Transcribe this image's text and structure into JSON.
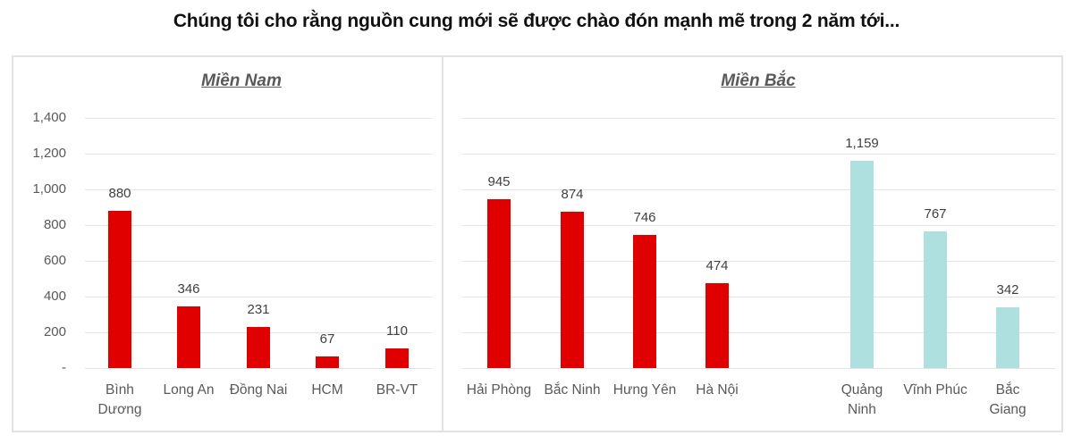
{
  "title": "Chúng tôi cho rằng nguồn cung mới sẽ được chào đón mạnh mẽ trong 2 năm tới...",
  "colors": {
    "red": "#e00000",
    "teal": "#aee0e0",
    "grid": "#e3e3e3",
    "axis_text": "#595959"
  },
  "y_ticks": [
    "1,400",
    "1,200",
    "1,000",
    "800",
    "600",
    "400",
    "200",
    "-"
  ],
  "chart_data": [
    {
      "type": "bar",
      "title": "Miền Nam",
      "categories": [
        "Bình Dương",
        "Long An",
        "Đồng Nai",
        "HCM",
        "BR-VT"
      ],
      "values": [
        880,
        346,
        231,
        67,
        110
      ],
      "value_labels": [
        "880",
        "346",
        "231",
        "67",
        "110"
      ],
      "xlabel": "",
      "ylabel": "",
      "ylim": [
        0,
        1400
      ],
      "yticks": [
        0,
        200,
        400,
        600,
        800,
        1000,
        1200,
        1400
      ],
      "grid": true,
      "bar_colors": [
        "#e00000",
        "#e00000",
        "#e00000",
        "#e00000",
        "#e00000"
      ]
    },
    {
      "type": "bar",
      "title": "Miền Bắc",
      "categories": [
        "Hải Phòng",
        "Bắc Ninh",
        "Hưng Yên",
        "Hà Nội",
        "Quảng Ninh",
        "Vĩnh Phúc",
        "Bắc Giang"
      ],
      "values": [
        945,
        874,
        746,
        474,
        1159,
        767,
        342
      ],
      "value_labels": [
        "945",
        "874",
        "746",
        "474",
        "1,159",
        "767",
        "342"
      ],
      "xlabel": "",
      "ylabel": "",
      "ylim": [
        0,
        1400
      ],
      "grid": true,
      "bar_colors": [
        "#e00000",
        "#e00000",
        "#e00000",
        "#e00000",
        "#aee0e0",
        "#aee0e0",
        "#aee0e0"
      ]
    }
  ],
  "south": {
    "title": "Miền Nam",
    "labels": [
      [
        "Bình",
        "Dương"
      ],
      [
        "Long An"
      ],
      [
        "Đồng Nai"
      ],
      [
        "HCM"
      ],
      [
        "BR-VT"
      ]
    ]
  },
  "north": {
    "title": "Miền Bắc",
    "labels": [
      [
        "Hải Phòng"
      ],
      [
        "Bắc Ninh"
      ],
      [
        "Hưng Yên"
      ],
      [
        "Hà Nội"
      ],
      [
        "Quảng",
        "Ninh"
      ],
      [
        "Vĩnh Phúc"
      ],
      [
        "Bắc",
        "Giang"
      ]
    ]
  }
}
